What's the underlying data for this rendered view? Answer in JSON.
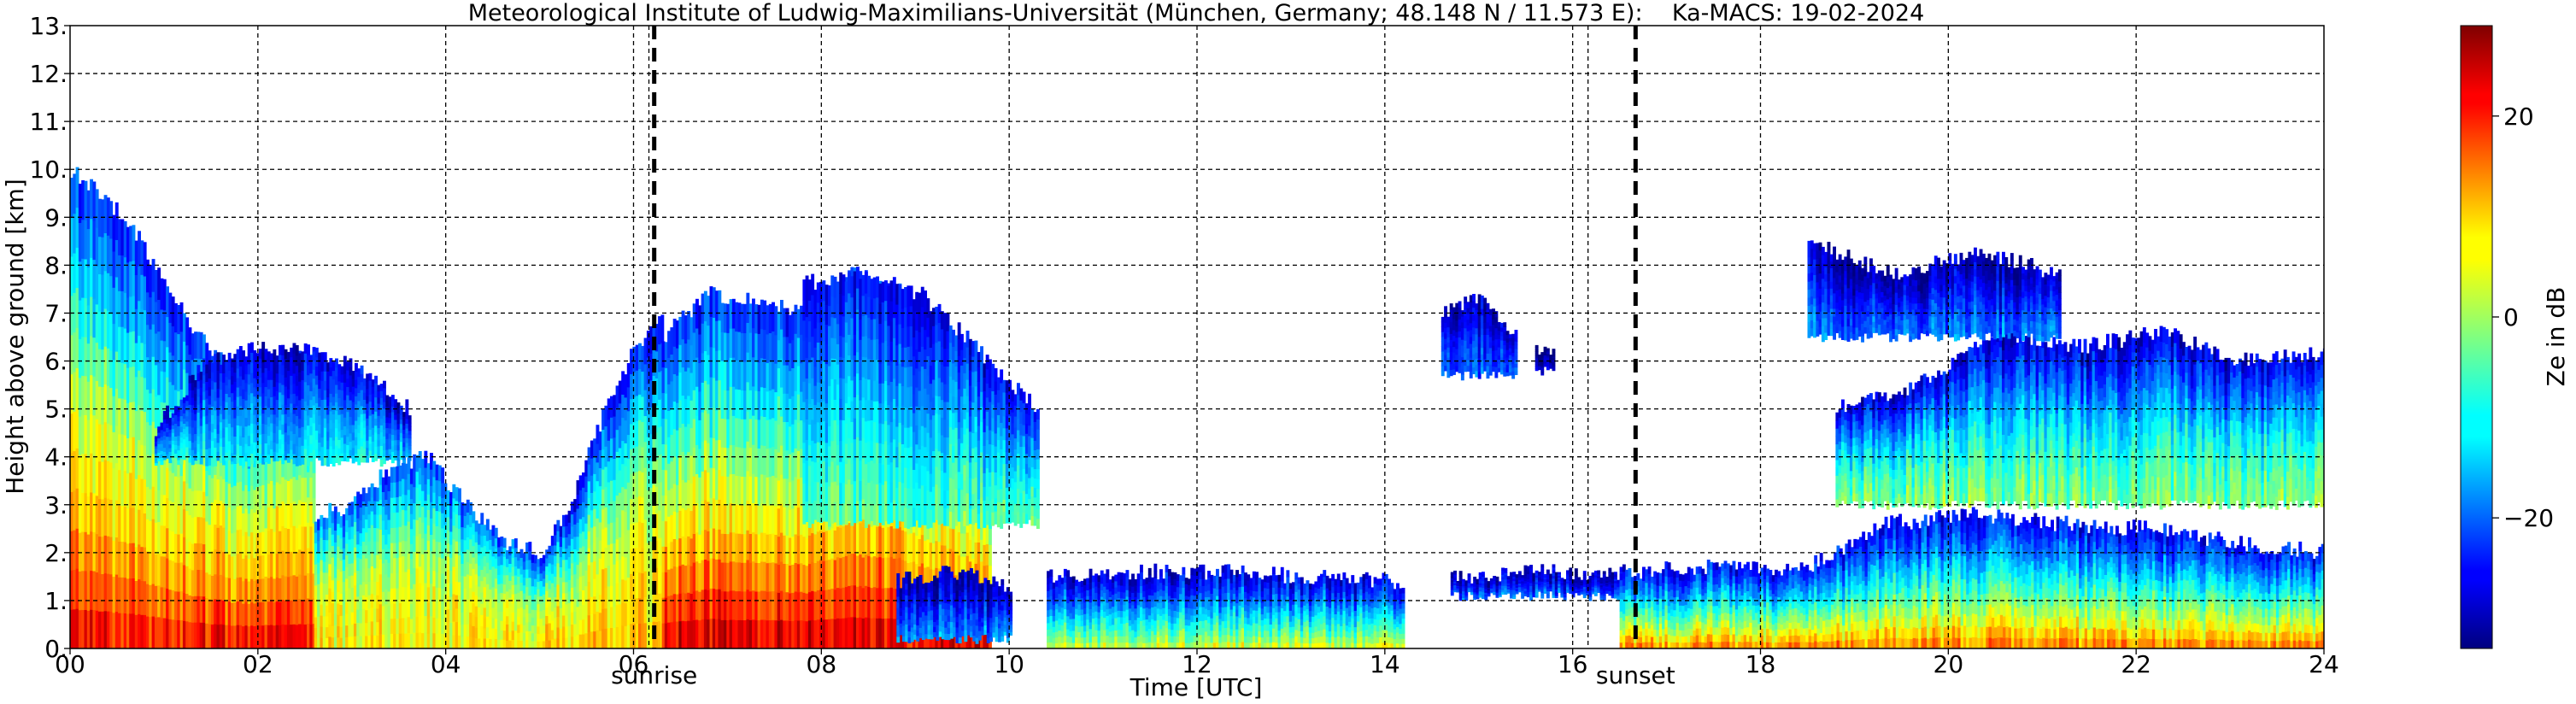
{
  "chart_data": {
    "type": "heatmap",
    "title": "Meteorological Institute of Ludwig-Maximilians-Universität (München, Germany; 48.148 N / 11.573 E):    Ka-MACS: 19-02-2024",
    "xlabel": "Time [UTC]",
    "ylabel": "Height above ground [km]",
    "xlim": [
      0,
      24
    ],
    "ylim": [
      0,
      13
    ],
    "x_ticks": [
      0,
      2,
      4,
      6,
      8,
      10,
      12,
      14,
      16,
      18,
      20,
      22,
      24
    ],
    "x_tick_labels": [
      "00",
      "02",
      "04",
      "06",
      "08",
      "10",
      "12",
      "14",
      "16",
      "18",
      "20",
      "22",
      "24"
    ],
    "y_ticks": [
      0,
      1,
      2,
      3,
      4,
      5,
      6,
      7,
      8,
      9,
      10,
      11,
      12,
      13
    ],
    "y_tick_labels": [
      "0.",
      "1.",
      "2.",
      "3.",
      "4.",
      "5.",
      "6.",
      "7.",
      "8.",
      "9.",
      "10.",
      "11.",
      "12.",
      "13."
    ],
    "grid": true,
    "extra_x_grid": [
      6.0,
      16.0
    ],
    "events": [
      {
        "label": "sunrise",
        "time": 6.22
      },
      {
        "label": "sunset",
        "time": 16.67
      }
    ],
    "colorbar": {
      "label": "Ze in dB",
      "colormap": "jet",
      "range": [
        -33,
        29
      ],
      "ticks": [
        20,
        0,
        -20
      ],
      "tick_labels": [
        "20",
        "0",
        "−20"
      ]
    },
    "echoes": [
      {
        "name": "deep-precip",
        "t0": 0.0,
        "t1": 2.6,
        "base": 0.0,
        "top": [
          10.0,
          9.4,
          8.5,
          7.2,
          6.2,
          5.8,
          6.0,
          6.2
        ],
        "ze": [
          22,
          10,
          2,
          -12,
          -24
        ]
      },
      {
        "name": "evening-anvil",
        "t0": 0.9,
        "t1": 3.6,
        "base": 3.9,
        "top": [
          4.6,
          6.0,
          6.3,
          6.2,
          5.9,
          5.0
        ],
        "ze": [
          -10,
          -14,
          -18,
          -24,
          -28
        ]
      },
      {
        "name": "streak-cells",
        "t0": 2.6,
        "t1": 5.0,
        "base": 0.0,
        "top": [
          2.8,
          3.0,
          3.8,
          4.0,
          3.0,
          2.2,
          2.0
        ],
        "ze": [
          6,
          4,
          0,
          -10,
          -22
        ]
      },
      {
        "name": "pre-dawn-rise",
        "t0": 5.0,
        "t1": 6.3,
        "base": 0.0,
        "top": [
          2.0,
          3.0,
          4.8,
          6.2,
          7.0
        ],
        "ze": [
          10,
          6,
          0,
          -12,
          -26
        ]
      },
      {
        "name": "morning-system",
        "t0": 6.3,
        "t1": 9.8,
        "base": 0.0,
        "top": [
          6.5,
          7.4,
          7.3,
          7.0,
          7.8,
          7.6,
          6.4,
          5.0
        ],
        "ze": [
          24,
          12,
          0,
          -12,
          -24
        ]
      },
      {
        "name": "morning-upper",
        "t0": 7.8,
        "t1": 10.3,
        "base": 2.6,
        "top": [
          7.6,
          7.9,
          7.4,
          6.2,
          5.0
        ],
        "ze": [
          -4,
          -8,
          -14,
          -20,
          -26
        ]
      },
      {
        "name": "low-strat-1",
        "t0": 8.8,
        "t1": 10.0,
        "base": 0.2,
        "top": [
          1.4,
          1.6,
          1.3
        ],
        "ze": [
          -16,
          -20,
          -24,
          -28,
          -30
        ]
      },
      {
        "name": "low-strat-2",
        "t0": 10.4,
        "t1": 14.2,
        "base": 0.0,
        "top": [
          1.5,
          1.6,
          1.6,
          1.5,
          1.4
        ],
        "ze": [
          4,
          -6,
          -14,
          -22,
          -28
        ]
      },
      {
        "name": "cirrus-15",
        "t0": 14.6,
        "t1": 15.4,
        "base": 5.7,
        "top": [
          7.0,
          7.3,
          6.5
        ],
        "ze": [
          -20,
          -22,
          -24,
          -28,
          -30
        ]
      },
      {
        "name": "cirrus-16",
        "t0": 15.6,
        "t1": 15.8,
        "base": 5.8,
        "top": [
          6.3,
          6.2
        ],
        "ze": [
          -24,
          -26,
          -28,
          -30,
          -32
        ]
      },
      {
        "name": "low-strat-3",
        "t0": 14.7,
        "t1": 16.5,
        "base": 1.1,
        "top": [
          1.5,
          1.6,
          1.6
        ],
        "ze": [
          -18,
          -22,
          -26,
          -28,
          -30
        ]
      },
      {
        "name": "evening-low",
        "t0": 16.5,
        "t1": 24.0,
        "base": 0.0,
        "top": [
          1.6,
          1.7,
          1.6,
          2.6,
          2.8,
          2.6,
          2.5,
          2.2,
          2.0
        ],
        "ze": [
          14,
          2,
          -8,
          -18,
          -26
        ]
      },
      {
        "name": "evening-mid",
        "t0": 18.8,
        "t1": 24.0,
        "base": 3.0,
        "top": [
          5.0,
          5.5,
          6.6,
          6.3,
          6.6,
          6.0,
          6.2
        ],
        "ze": [
          -2,
          -6,
          -12,
          -20,
          -28
        ]
      },
      {
        "name": "evening-cirrus",
        "t0": 18.5,
        "t1": 21.2,
        "base": 6.5,
        "top": [
          8.5,
          7.8,
          8.3,
          7.8
        ],
        "ze": [
          -18,
          -20,
          -24,
          -28,
          -30
        ]
      }
    ]
  }
}
